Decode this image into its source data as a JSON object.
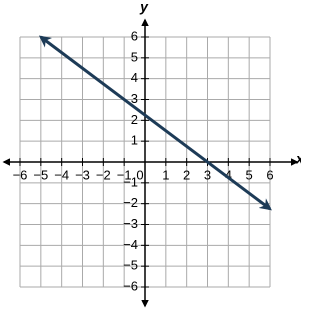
{
  "chart_data": {
    "type": "line",
    "x_label": "x",
    "y_label": "y",
    "xlim": [
      -6,
      6
    ],
    "ylim": [
      -6,
      6
    ],
    "xticks": [
      {
        "value": -6,
        "label": "−6"
      },
      {
        "value": -5,
        "label": "−5"
      },
      {
        "value": -4,
        "label": "−4"
      },
      {
        "value": -3,
        "label": "−3"
      },
      {
        "value": -2,
        "label": "−2"
      },
      {
        "value": -1,
        "label": "−1"
      },
      0,
      1,
      2,
      3,
      4,
      5,
      6
    ],
    "yticks": [
      {
        "value": -6,
        "label": "−6"
      },
      {
        "value": -5,
        "label": "−5"
      },
      {
        "value": -4,
        "label": "−4"
      },
      {
        "value": -3,
        "label": "−3"
      },
      {
        "value": -2,
        "label": "−2"
      },
      {
        "value": -1,
        "label": "−1"
      },
      1,
      2,
      3,
      4,
      5,
      6
    ],
    "grid": true,
    "series": [
      {
        "color": "#1d3b57",
        "x": [
          -5,
          6
        ],
        "values": [
          6,
          -2.25
        ]
      }
    ]
  }
}
